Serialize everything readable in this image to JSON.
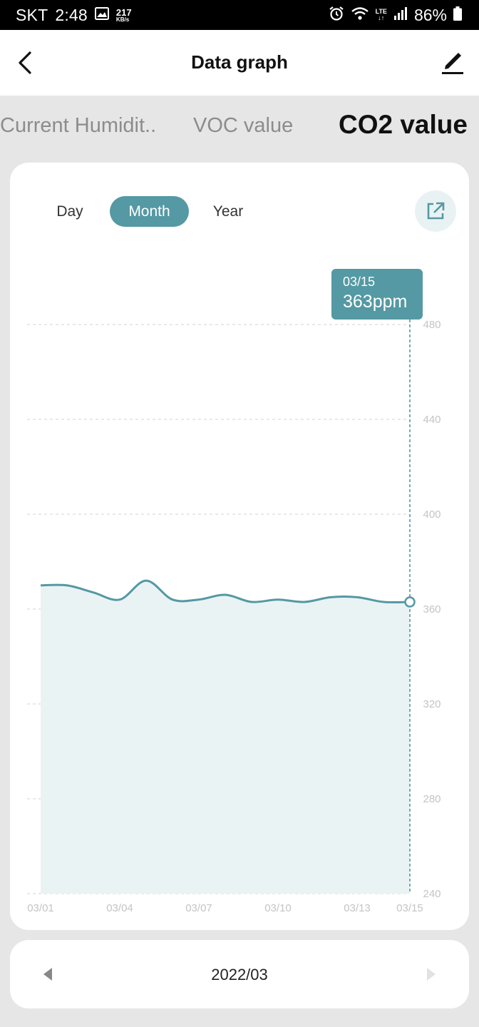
{
  "status_bar": {
    "carrier": "SKT",
    "time": "2:48",
    "net_speed": "217",
    "net_speed_unit": "KB/s",
    "network_type": "LTE",
    "battery": "86%"
  },
  "header": {
    "title": "Data graph"
  },
  "tabs": [
    {
      "label": "Current Humidit.."
    },
    {
      "label": "VOC value"
    },
    {
      "label": "CO2 value"
    }
  ],
  "period_selector": {
    "options": [
      "Day",
      "Month",
      "Year"
    ],
    "selected": "Month"
  },
  "tooltip": {
    "date": "03/15",
    "value": "363ppm"
  },
  "month_nav": {
    "label": "2022/03"
  },
  "colors": {
    "accent": "#5499a3",
    "area_fill": "#eaf3f4",
    "line": "#5499a3"
  },
  "chart_data": {
    "type": "area",
    "x": [
      "03/01",
      "03/02",
      "03/03",
      "03/04",
      "03/05",
      "03/06",
      "03/07",
      "03/08",
      "03/09",
      "03/10",
      "03/11",
      "03/12",
      "03/13",
      "03/14",
      "03/15"
    ],
    "values": [
      370,
      370,
      367,
      364,
      372,
      364,
      364,
      366,
      363,
      364,
      363,
      365,
      365,
      363,
      363
    ],
    "x_tick_labels": [
      "03/01",
      "03/04",
      "03/07",
      "03/10",
      "03/13",
      "03/15"
    ],
    "y_ticks": [
      240,
      280,
      320,
      360,
      400,
      440,
      480
    ],
    "ylim": [
      240,
      480
    ],
    "unit": "ppm",
    "grid": true,
    "highlight_index": 14
  }
}
